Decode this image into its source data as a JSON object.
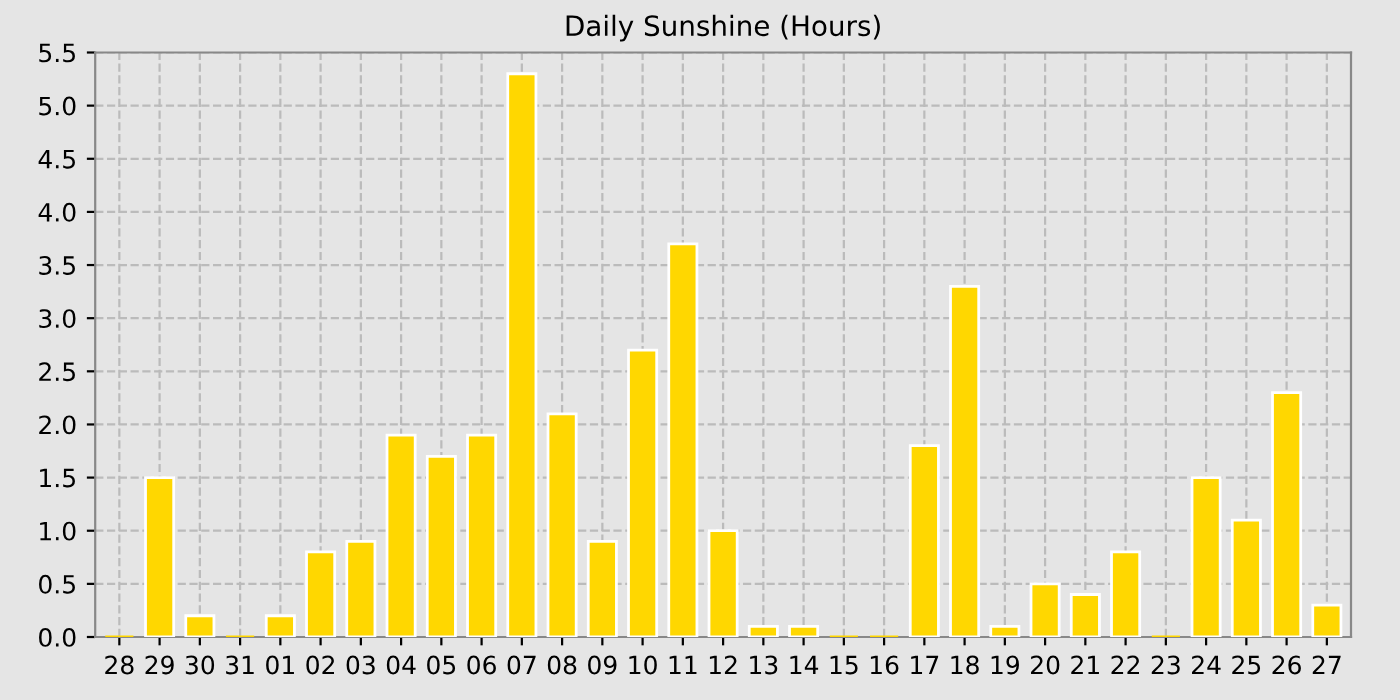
{
  "chart_data": {
    "type": "bar",
    "title": "Daily Sunshine (Hours)",
    "categories": [
      "28",
      "29",
      "30",
      "31",
      "01",
      "02",
      "03",
      "04",
      "05",
      "06",
      "07",
      "08",
      "09",
      "10",
      "11",
      "12",
      "13",
      "14",
      "15",
      "16",
      "17",
      "18",
      "19",
      "20",
      "21",
      "22",
      "23",
      "24",
      "25",
      "26",
      "27"
    ],
    "values": [
      0,
      1.5,
      0.2,
      0,
      0.2,
      0.8,
      0.9,
      1.9,
      1.7,
      1.9,
      5.3,
      2.1,
      0.9,
      2.7,
      3.7,
      1.0,
      0.1,
      0.1,
      0,
      0,
      1.8,
      3.3,
      0.1,
      0.5,
      0.4,
      0.8,
      0,
      1.5,
      1.1,
      2.3,
      0.3
    ],
    "color": "#ffd700",
    "ylim": [
      0,
      5.5
    ],
    "yticks": [
      {
        "value": 0,
        "label": "0.0"
      },
      {
        "value": 0.5,
        "label": "0.5"
      },
      {
        "value": 1,
        "label": "1.0"
      },
      {
        "value": 1.5,
        "label": "1.5"
      },
      {
        "value": 2,
        "label": "2.0"
      },
      {
        "value": 2.5,
        "label": "2.5"
      },
      {
        "value": 3,
        "label": "3.0"
      },
      {
        "value": 3.5,
        "label": "3.5"
      },
      {
        "value": 4,
        "label": "4.0"
      },
      {
        "value": 4.5,
        "label": "4.5"
      },
      {
        "value": 5,
        "label": "5.0"
      },
      {
        "value": 5.5,
        "label": "5.5"
      }
    ],
    "grid": true
  }
}
